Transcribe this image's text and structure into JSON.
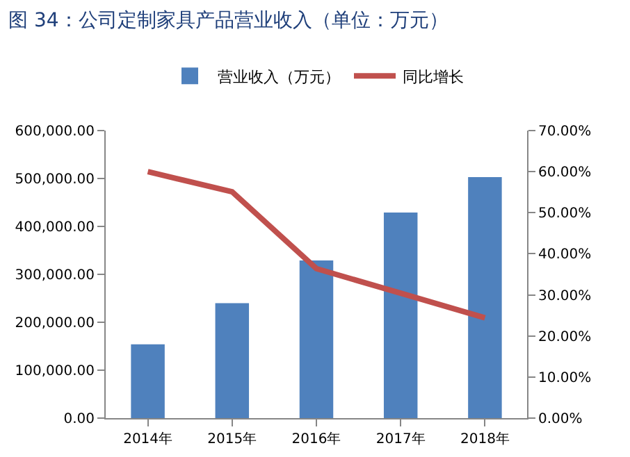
{
  "chart_data": {
    "type": "bar",
    "title": "图 34：公司定制家具产品营业收入（单位：万元）",
    "categories": [
      "2014年",
      "2015年",
      "2016年",
      "2017年",
      "2018年"
    ],
    "series": [
      {
        "name": "营业收入（万元）",
        "color": "#4f81bd",
        "values": [
          154000,
          240000,
          329000,
          429000,
          503000
        ]
      },
      {
        "name": "同比增长",
        "type": "line",
        "axis": "y2",
        "color": "#c0504d",
        "values": [
          60.0,
          55.1,
          36.4,
          30.4,
          24.4
        ]
      }
    ],
    "ylim": [
      0,
      600000
    ],
    "yticks": [
      {
        "value": 0,
        "label": "0.00"
      },
      {
        "value": 100000,
        "label": "100,000.00"
      },
      {
        "value": 200000,
        "label": "200,000.00"
      },
      {
        "value": 300000,
        "label": "300,000.00"
      },
      {
        "value": 400000,
        "label": "400,000.00"
      },
      {
        "value": 500000,
        "label": "500,000.00"
      },
      {
        "value": 600000,
        "label": "600,000.00"
      }
    ],
    "y2lim": [
      0,
      70
    ],
    "y2ticks": [
      {
        "value": 0,
        "label": "0.00%"
      },
      {
        "value": 10,
        "label": "10.00%"
      },
      {
        "value": 20,
        "label": "20.00%"
      },
      {
        "value": 30,
        "label": "30.00%"
      },
      {
        "value": 40,
        "label": "40.00%"
      },
      {
        "value": 50,
        "label": "50.00%"
      },
      {
        "value": 60,
        "label": "60.00%"
      },
      {
        "value": 70,
        "label": "70.00%"
      }
    ],
    "grid": false,
    "legend": "top",
    "marker": "none",
    "line_style": "solid"
  }
}
